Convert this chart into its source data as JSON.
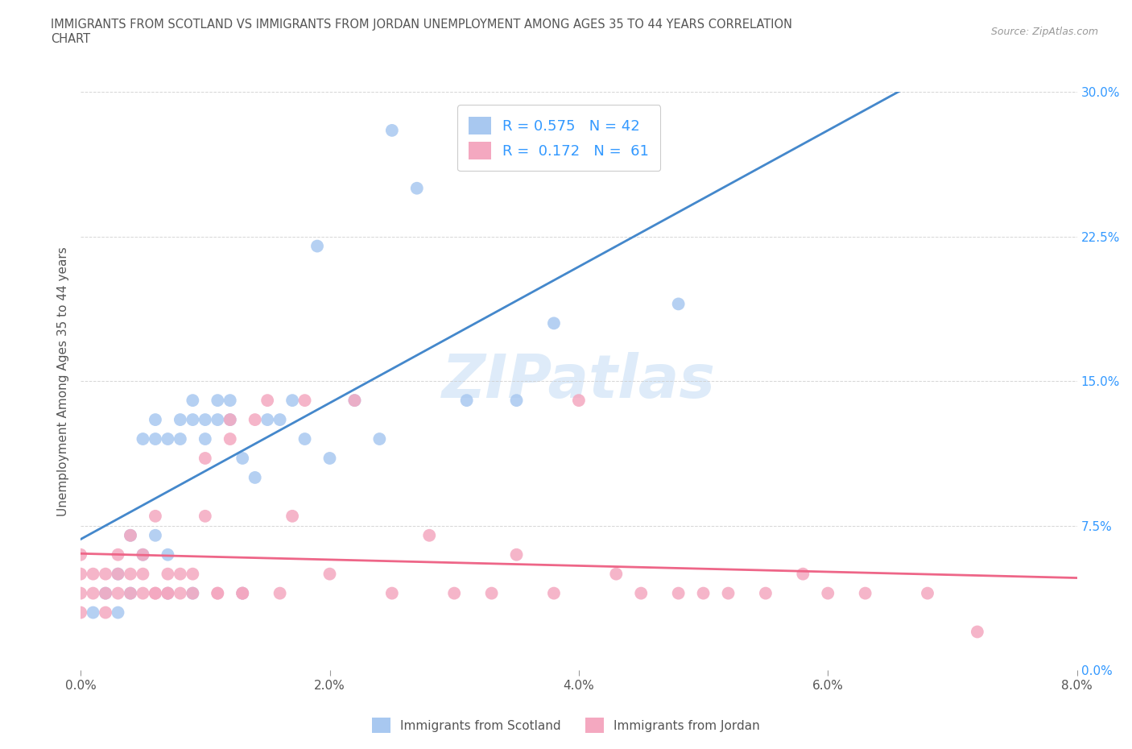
{
  "title": "IMMIGRANTS FROM SCOTLAND VS IMMIGRANTS FROM JORDAN UNEMPLOYMENT AMONG AGES 35 TO 44 YEARS CORRELATION\nCHART",
  "source": "Source: ZipAtlas.com",
  "ylabel": "Unemployment Among Ages 35 to 44 years",
  "xlim": [
    0.0,
    0.08
  ],
  "ylim": [
    -0.02,
    0.32
  ],
  "plot_ylim": [
    0.0,
    0.3
  ],
  "xticks": [
    0.0,
    0.02,
    0.04,
    0.06,
    0.08
  ],
  "xticklabels": [
    "0.0%",
    "2.0%",
    "4.0%",
    "6.0%",
    "8.0%"
  ],
  "yticks": [
    0.0,
    0.075,
    0.15,
    0.225,
    0.3
  ],
  "yticklabels": [
    "0.0%",
    "7.5%",
    "15.0%",
    "22.5%",
    "30.0%"
  ],
  "scotland_color": "#a8c8f0",
  "jordan_color": "#f4a8c0",
  "scotland_line_color": "#4488cc",
  "jordan_line_color": "#ee6688",
  "scotland_R": 0.575,
  "scotland_N": 42,
  "jordan_R": 0.172,
  "jordan_N": 61,
  "scotland_x": [
    0.001,
    0.002,
    0.003,
    0.003,
    0.004,
    0.004,
    0.005,
    0.005,
    0.006,
    0.006,
    0.006,
    0.007,
    0.007,
    0.007,
    0.008,
    0.008,
    0.009,
    0.009,
    0.009,
    0.01,
    0.01,
    0.011,
    0.011,
    0.012,
    0.012,
    0.013,
    0.013,
    0.014,
    0.015,
    0.016,
    0.017,
    0.018,
    0.019,
    0.02,
    0.022,
    0.024,
    0.025,
    0.027,
    0.031,
    0.035,
    0.038,
    0.048
  ],
  "scotland_y": [
    0.03,
    0.04,
    0.05,
    0.03,
    0.04,
    0.07,
    0.06,
    0.12,
    0.13,
    0.12,
    0.07,
    0.12,
    0.06,
    0.04,
    0.13,
    0.12,
    0.13,
    0.14,
    0.04,
    0.12,
    0.13,
    0.13,
    0.14,
    0.13,
    0.14,
    0.04,
    0.11,
    0.1,
    0.13,
    0.13,
    0.14,
    0.12,
    0.22,
    0.11,
    0.14,
    0.12,
    0.28,
    0.25,
    0.14,
    0.14,
    0.18,
    0.19
  ],
  "jordan_x": [
    0.0,
    0.0,
    0.0,
    0.0,
    0.001,
    0.001,
    0.002,
    0.002,
    0.002,
    0.003,
    0.003,
    0.003,
    0.004,
    0.004,
    0.004,
    0.005,
    0.005,
    0.005,
    0.006,
    0.006,
    0.006,
    0.007,
    0.007,
    0.007,
    0.008,
    0.008,
    0.009,
    0.009,
    0.01,
    0.01,
    0.011,
    0.011,
    0.012,
    0.012,
    0.013,
    0.013,
    0.014,
    0.015,
    0.016,
    0.017,
    0.018,
    0.02,
    0.022,
    0.025,
    0.028,
    0.03,
    0.033,
    0.035,
    0.038,
    0.04,
    0.043,
    0.045,
    0.048,
    0.05,
    0.052,
    0.055,
    0.058,
    0.06,
    0.063,
    0.068,
    0.072
  ],
  "jordan_y": [
    0.05,
    0.03,
    0.04,
    0.06,
    0.04,
    0.05,
    0.04,
    0.05,
    0.03,
    0.06,
    0.04,
    0.05,
    0.07,
    0.04,
    0.05,
    0.04,
    0.06,
    0.05,
    0.04,
    0.08,
    0.04,
    0.04,
    0.05,
    0.04,
    0.05,
    0.04,
    0.05,
    0.04,
    0.08,
    0.11,
    0.04,
    0.04,
    0.12,
    0.13,
    0.04,
    0.04,
    0.13,
    0.14,
    0.04,
    0.08,
    0.14,
    0.05,
    0.14,
    0.04,
    0.07,
    0.04,
    0.04,
    0.06,
    0.04,
    0.14,
    0.05,
    0.04,
    0.04,
    0.04,
    0.04,
    0.04,
    0.05,
    0.04,
    0.04,
    0.04,
    0.02
  ],
  "watermark": "ZIPatlas",
  "background_color": "#ffffff",
  "grid_color": "#cccccc"
}
